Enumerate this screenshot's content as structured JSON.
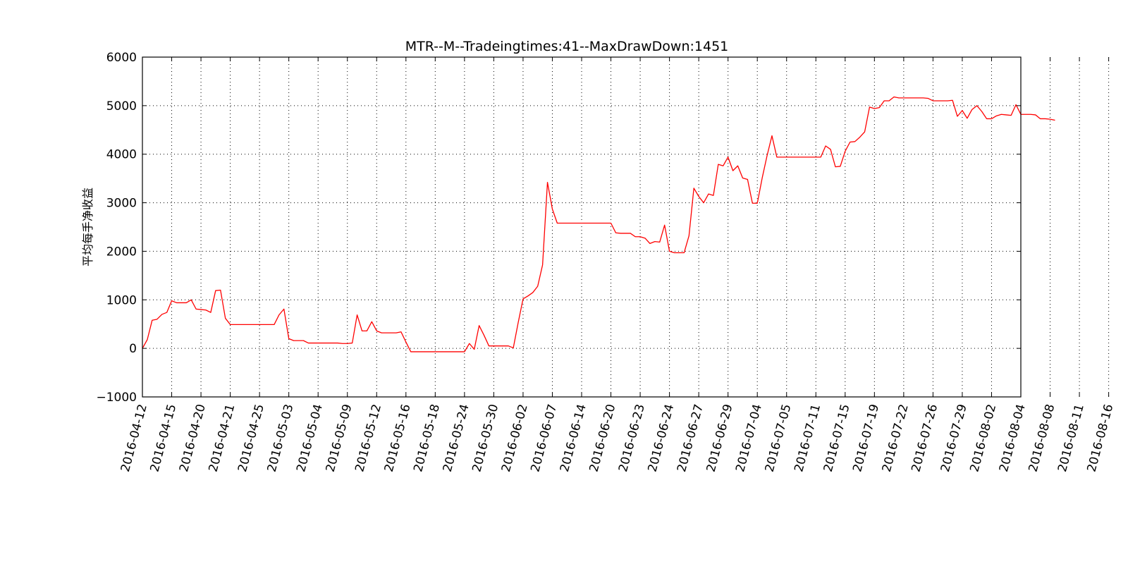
{
  "chart_data": {
    "type": "line",
    "title": "MTR--M--Tradeingtimes:41--MaxDrawDown:1451",
    "xlabel": "",
    "ylabel": "平均每手净收益",
    "ylim": [
      -1000,
      6000
    ],
    "yticks": [
      -1000,
      0,
      1000,
      2000,
      3000,
      4000,
      5000,
      6000
    ],
    "ytick_labels": [
      "−1000",
      "0",
      "1000",
      "2000",
      "3000",
      "4000",
      "5000",
      "6000"
    ],
    "x_tick_labels": [
      "2016-04-12",
      "2016-04-15",
      "2016-04-20",
      "2016-04-21",
      "2016-04-25",
      "2016-05-03",
      "2016-05-04",
      "2016-05-09",
      "2016-05-12",
      "2016-05-16",
      "2016-05-18",
      "2016-05-24",
      "2016-05-30",
      "2016-06-02",
      "2016-06-07",
      "2016-06-14",
      "2016-06-20",
      "2016-06-23",
      "2016-06-24",
      "2016-06-27",
      "2016-06-29",
      "2016-07-04",
      "2016-07-05",
      "2016-07-11",
      "2016-07-15",
      "2016-07-19",
      "2016-07-22",
      "2016-07-26",
      "2016-07-29",
      "2016-08-02",
      "2016-08-04",
      "2016-08-08",
      "2016-08-11",
      "2016-08-16"
    ],
    "x_max_index": 180,
    "grid": true,
    "series": [
      {
        "color": "#ff0000",
        "values": [
          0,
          180,
          580,
          600,
          700,
          740,
          980,
          940,
          940,
          940,
          1000,
          810,
          800,
          790,
          740,
          1190,
          1200,
          620,
          490,
          490,
          490,
          490,
          490,
          490,
          490,
          490,
          490,
          490,
          690,
          810,
          200,
          160,
          160,
          160,
          110,
          110,
          110,
          110,
          110,
          110,
          110,
          100,
          100,
          110,
          690,
          360,
          360,
          550,
          360,
          320,
          320,
          320,
          320,
          340,
          130,
          -70,
          -70,
          -70,
          -70,
          -70,
          -70,
          -70,
          -70,
          -70,
          -70,
          -70,
          -70,
          100,
          -20,
          470,
          270,
          50,
          50,
          50,
          50,
          50,
          10,
          530,
          1020,
          1080,
          1150,
          1280,
          1720,
          3420,
          2870,
          2580,
          2580,
          2580,
          2580,
          2580,
          2580,
          2580,
          2580,
          2580,
          2580,
          2580,
          2580,
          2380,
          2370,
          2370,
          2370,
          2300,
          2300,
          2270,
          2160,
          2200,
          2190,
          2540,
          2000,
          1970,
          1970,
          1970,
          2320,
          3300,
          3130,
          3000,
          3180,
          3150,
          3790,
          3760,
          3940,
          3660,
          3760,
          3510,
          3480,
          2990,
          2990,
          3510,
          3970,
          4380,
          3940,
          3940,
          3940,
          3940,
          3940,
          3940,
          3940,
          3940,
          3940,
          3940,
          4170,
          4100,
          3740,
          3750,
          4060,
          4250,
          4260,
          4350,
          4460,
          4970,
          4940,
          4960,
          5100,
          5100,
          5180,
          5160,
          5160,
          5160,
          5160,
          5160,
          5160,
          5150,
          5100,
          5100,
          5100,
          5100,
          5110,
          4780,
          4900,
          4740,
          4920,
          5000,
          4880,
          4730,
          4730,
          4790,
          4820,
          4810,
          4800,
          5020,
          4820,
          4820,
          4820,
          4810,
          4730,
          4730,
          4720,
          4700
        ]
      }
    ]
  }
}
